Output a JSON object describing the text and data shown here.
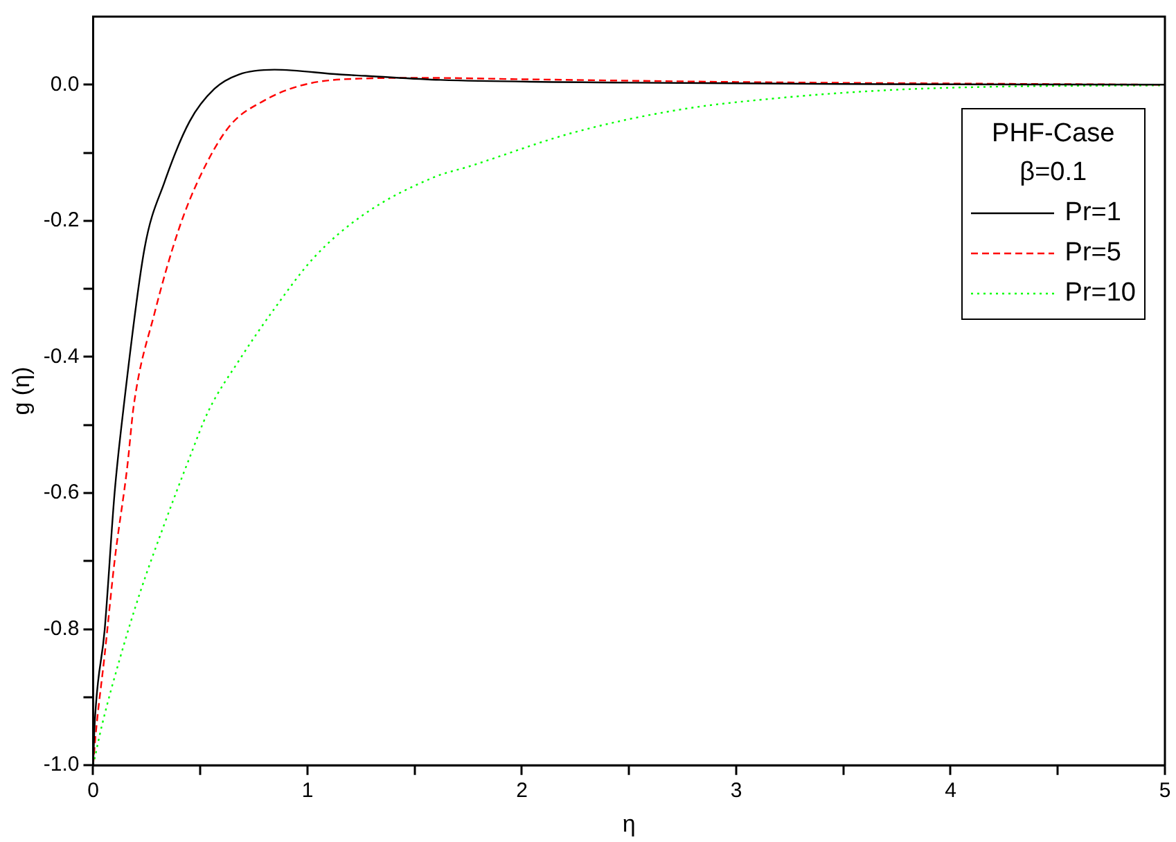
{
  "chart_data": {
    "type": "line",
    "xlabel": "η",
    "ylabel": "g (η)",
    "legend_title": "PHF-Case\nβ=0.1",
    "legend": "top right",
    "grid": false,
    "marker": "none",
    "xlim": [
      0,
      5
    ],
    "ylim": [
      -1,
      0.1
    ],
    "xticks": [
      0,
      {
        "value": 0.5,
        "label": null
      },
      1,
      {
        "value": 1.5,
        "label": null
      },
      2,
      {
        "value": 2.5,
        "label": null
      },
      3,
      {
        "value": 3.5,
        "label": null
      },
      4,
      {
        "value": 4.5,
        "label": null
      },
      5
    ],
    "yticks": [
      {
        "value": -1,
        "label": "-1.0"
      },
      {
        "value": -0.9,
        "label": null
      },
      {
        "value": -0.8,
        "label": "-0.8"
      },
      {
        "value": -0.7,
        "label": null
      },
      {
        "value": -0.6,
        "label": "-0.6"
      },
      {
        "value": -0.5,
        "label": null
      },
      {
        "value": -0.4,
        "label": "-0.4"
      },
      {
        "value": -0.3,
        "label": null
      },
      {
        "value": -0.2,
        "label": "-0.2"
      },
      {
        "value": -0.1,
        "label": null
      },
      {
        "value": 0,
        "label": "0.0"
      }
    ],
    "series": [
      {
        "name": "Pr=1",
        "color": "#000000",
        "line_style": "solid",
        "x": [
          0,
          0.007,
          0.054,
          0.1,
          0.14,
          0.24,
          0.333,
          0.45,
          0.566,
          0.68,
          0.846,
          1.15,
          1.27,
          1.62,
          2.5,
          3.47,
          5
        ],
        "values": [
          -1,
          -0.94,
          -0.8,
          -0.6,
          -0.48,
          -0.24,
          -0.143,
          -0.054,
          -0.006,
          0.015,
          0.022,
          0.015,
          0.013,
          0.007,
          0.003,
          0.001,
          0
        ]
      },
      {
        "name": "Pr=5",
        "color": "#ff0000",
        "line_style": "dashed",
        "x": [
          0,
          0.012,
          0.054,
          0.1,
          0.159,
          0.19,
          0.287,
          0.4,
          0.497,
          0.636,
          0.8,
          0.96,
          1.17,
          1.55,
          2,
          3,
          5
        ],
        "values": [
          -1,
          -0.954,
          -0.837,
          -0.7,
          -0.562,
          -0.47,
          -0.335,
          -0.212,
          -0.136,
          -0.061,
          -0.023,
          -0.002,
          0.008,
          0.01,
          0.008,
          0.004,
          0
        ]
      },
      {
        "name": "Pr=10",
        "color": "#00ff00",
        "line_style": "dotted",
        "x": [
          0,
          0.042,
          0.124,
          0.217,
          0.333,
          0.45,
          0.537,
          0.683,
          0.846,
          1.033,
          1.266,
          1.59,
          1.755,
          2.245,
          2.73,
          3.22,
          3.71,
          4.2,
          5
        ],
        "values": [
          -1,
          -0.94,
          -0.844,
          -0.748,
          -0.645,
          -0.548,
          -0.48,
          -0.404,
          -0.329,
          -0.253,
          -0.19,
          -0.136,
          -0.12,
          -0.07,
          -0.037,
          -0.019,
          -0.008,
          -0.003,
          -0.001
        ]
      }
    ]
  }
}
